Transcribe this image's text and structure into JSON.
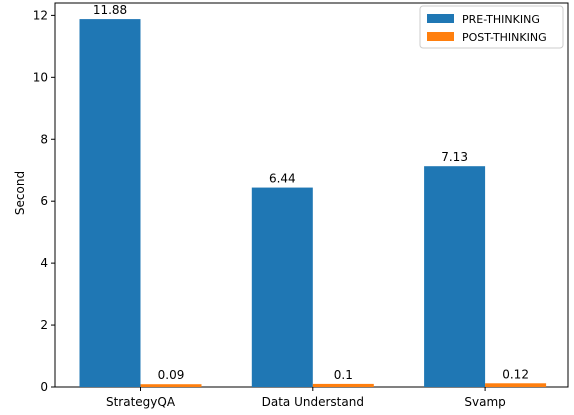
{
  "chart_data": {
    "type": "bar",
    "title": "",
    "xlabel": "",
    "ylabel": "Second",
    "ylim": [
      0,
      12.4
    ],
    "yticks": [
      0,
      2,
      4,
      6,
      8,
      10,
      12
    ],
    "categories": [
      "StrategyQA",
      "Data Understand",
      "Svamp"
    ],
    "series": [
      {
        "name": "PRE-THINKING",
        "values": [
          11.88,
          6.44,
          7.13
        ],
        "labels": [
          "11.88",
          "6.44",
          "7.13"
        ],
        "color": "#1f77b4"
      },
      {
        "name": "POST-THINKING",
        "values": [
          0.09,
          0.1,
          0.12
        ],
        "labels": [
          "0.09",
          "0.1",
          "0.12"
        ],
        "color": "#ff7f0e"
      }
    ],
    "legend_position": "top-right",
    "grid": false
  }
}
